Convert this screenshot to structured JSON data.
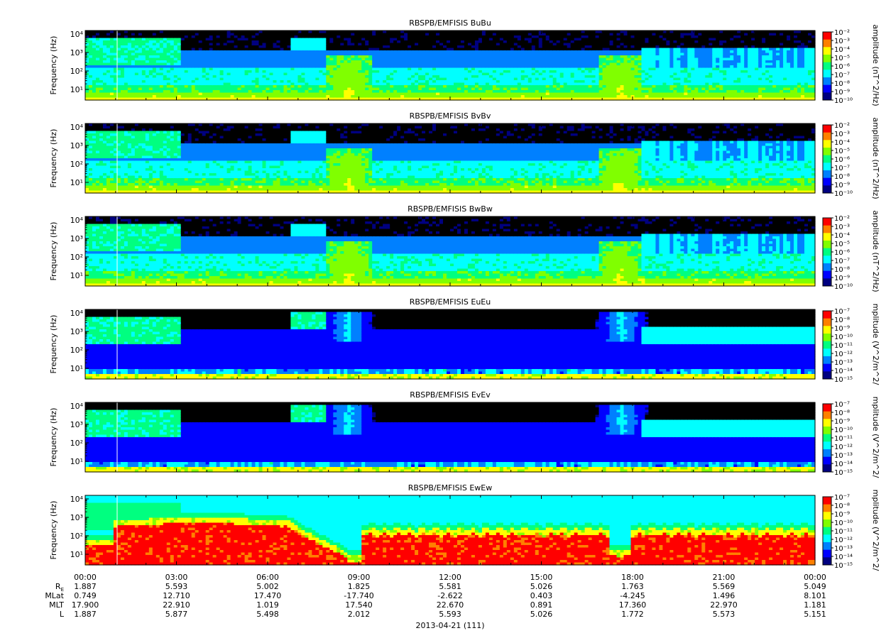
{
  "chart_data": {
    "type": "heatmap",
    "panels": [
      {
        "title": "RBSPB/EMFISIS  BuBu",
        "ylabel": "Frequency (Hz)",
        "colorbar_label": "amplitude (nT^2/Hz)",
        "colorbar_ticks": [
          "10⁻²",
          "10⁻³",
          "10⁻⁴",
          "10⁻⁵",
          "10⁻⁶",
          "10⁻⁷",
          "10⁻⁸",
          "10⁻⁹",
          "10⁻¹⁰"
        ]
      },
      {
        "title": "RBSPB/EMFISIS  BvBv",
        "ylabel": "Frequency (Hz)",
        "colorbar_label": "amplitude (nT^2/Hz)",
        "colorbar_ticks": [
          "10⁻²",
          "10⁻³",
          "10⁻⁴",
          "10⁻⁵",
          "10⁻⁶",
          "10⁻⁷",
          "10⁻⁸",
          "10⁻⁹",
          "10⁻¹⁰"
        ]
      },
      {
        "title": "RBSPB/EMFISIS  BwBw",
        "ylabel": "Frequency (Hz)",
        "colorbar_label": "amplitude (nT^2/Hz)",
        "colorbar_ticks": [
          "10⁻²",
          "10⁻³",
          "10⁻⁴",
          "10⁻⁵",
          "10⁻⁶",
          "10⁻⁷",
          "10⁻⁸",
          "10⁻⁹",
          "10⁻¹⁰"
        ]
      },
      {
        "title": "RBSPB/EMFISIS  EuEu",
        "ylabel": "Frequency (Hz)",
        "colorbar_label": "mplitude (V^2/m^2/",
        "colorbar_ticks": [
          "10⁻⁷",
          "10⁻⁸",
          "10⁻⁹",
          "10⁻¹⁰",
          "10⁻¹¹",
          "10⁻¹²",
          "10⁻¹³",
          "10⁻¹⁴",
          "10⁻¹⁵"
        ]
      },
      {
        "title": "RBSPB/EMFISIS  EvEv",
        "ylabel": "Frequency (Hz)",
        "colorbar_label": "mplitude (V^2/m^2/",
        "colorbar_ticks": [
          "10⁻⁷",
          "10⁻⁸",
          "10⁻⁹",
          "10⁻¹⁰",
          "10⁻¹¹",
          "10⁻¹²",
          "10⁻¹³",
          "10⁻¹⁴",
          "10⁻¹⁵"
        ]
      },
      {
        "title": "RBSPB/EMFISIS  EwEw",
        "ylabel": "Frequency (Hz)",
        "colorbar_label": "mplitude (V^2/m^2/",
        "colorbar_ticks": [
          "10⁻⁷",
          "10⁻⁸",
          "10⁻⁹",
          "10⁻¹⁰",
          "10⁻¹¹",
          "10⁻¹²",
          "10⁻¹³",
          "10⁻¹⁴",
          "10⁻¹⁵"
        ]
      }
    ],
    "y_tick_labels": [
      "10⁴",
      "10³",
      "10²",
      "10¹"
    ],
    "x_tick_labels": [
      "00:00",
      "03:00",
      "06:00",
      "09:00",
      "12:00",
      "15:00",
      "18:00",
      "21:00",
      "00:00"
    ],
    "ephemeris": [
      {
        "label": "R",
        "label_sub": "E",
        "values": [
          "1.887",
          "5.593",
          "5.002",
          "1.825",
          "5.581",
          "5.026",
          "1.763",
          "5.569",
          "5.049"
        ]
      },
      {
        "label": "MLat",
        "values": [
          "0.749",
          "12.710",
          "17.470",
          "-17.740",
          "-2.622",
          "0.403",
          "-4.245",
          "1.496",
          "8.101"
        ]
      },
      {
        "label": "MLT",
        "values": [
          "17.900",
          "22.910",
          "1.019",
          "17.540",
          "22.670",
          "0.891",
          "17.360",
          "22.970",
          "1.181"
        ]
      },
      {
        "label": "L",
        "values": [
          "1.887",
          "5.877",
          "5.498",
          "2.012",
          "5.593",
          "5.026",
          "1.772",
          "5.573",
          "5.151"
        ]
      }
    ],
    "date_label": "2013-04-21 (111)",
    "colorscale": [
      "#000080",
      "#0000ff",
      "#0080ff",
      "#00ffff",
      "#00ff80",
      "#80ff00",
      "#ffff00",
      "#ff8000",
      "#ff0000"
    ]
  }
}
